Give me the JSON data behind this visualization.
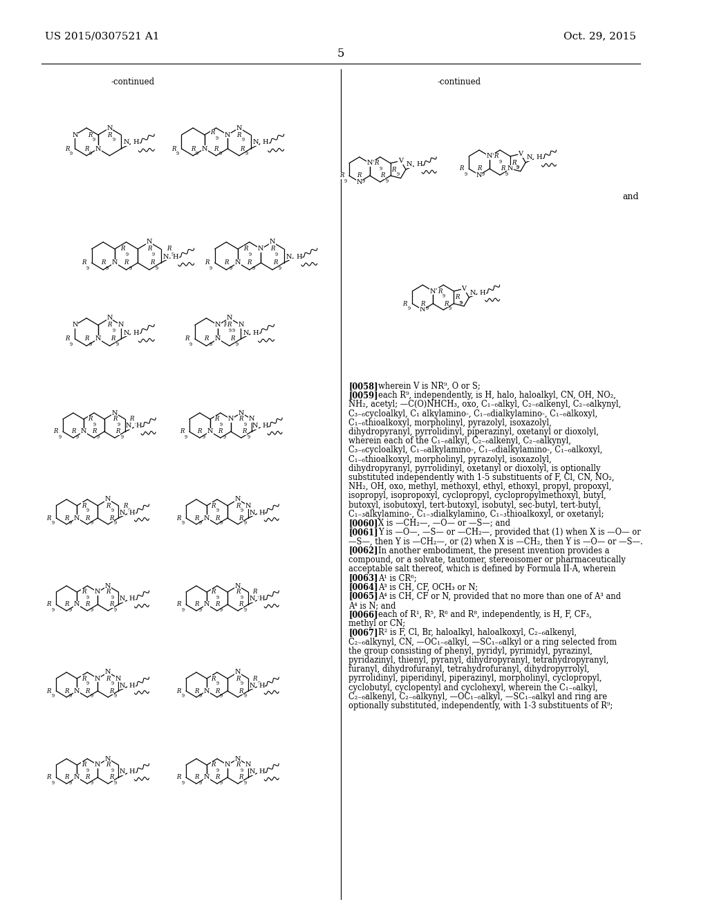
{
  "patent_number": "US 2015/0307521 A1",
  "date": "Oct. 29, 2015",
  "page": "5",
  "continued_left": "-continued",
  "continued_right": "-continued",
  "and_label": "and",
  "paragraphs": [
    {
      "tag": "[0058]",
      "indent": true,
      "text": "wherein V is NR⁹, O or S;"
    },
    {
      "tag": "[0059]",
      "indent": true,
      "text": "each R⁹, independently, is H, halo, haloalkyl, CN, OH, NO₂, NH₂, acetyl; —C(O)NHCH₃, oxo, C₁₋₆alkyl, C₂₋₆alkenyl, C₂₋₆alkynyl, C₃₋₆cycloalkyl, C₁ alkylamino-, C₁₋₆dialkylamino-, C₁₋₆alkoxyl, C₁₋₆thioalkoxyl, morpholinyl, pyrazolyl, isoxazolyl, dihydropyranyl, pyrrolidinyl, piperazinyl, oxetanyl or dioxolyl, wherein each of the C₁₋₆alkyl, C₂₋₆alkenyl, C₂₋₆alkynyl, C₃₋₆cycloalkyl, C₁₋₆alkylamino-, C₁₋₆dialkylamino-, C₁₋₆alkoxyl, C₁₋₆thioalkoxyl, morpholinyl, pyrazolyl, isoxazolyl, dihydropyranyl, pyrrolidinyl, oxetanyl or dioxolyl, is optionally substituted independently with 1-5 substituents of F, Cl, CN, NO₂, NH₂, OH, oxo, methyl, methoxyl, ethyl, ethoxyl, propyl, propoxyl, isopropyl, isopropoxyl, cyclopropyl, cyclopropylmethoxyl, butyl, butoxyl, isobutoxyl, tert-butoxyl, isobutyl, sec-butyl, tert-butyl, C₁₋₃alkylamino-, C₁₋₃dialkylamino, C₁₋₃thioalkoxyl, or oxetanyl;"
    },
    {
      "tag": "[0060]",
      "indent": true,
      "text": "X is —CH₂—, —O— or —S—; and"
    },
    {
      "tag": "[0061]",
      "indent": true,
      "text": "Y is —O—, —S— or —CH₂—, provided that (1) when X is —O— or —S—, then Y is —CH₂—, or (2) when X is —CH₂, then Y is —O— or —S—."
    },
    {
      "tag": "[0062]",
      "indent": true,
      "text": "In another embodiment, the present invention provides a compound, or a solvate, tautomer, stereoisomer or pharmaceutically acceptable salt thereof, which is defined by Formula II-A, wherein"
    },
    {
      "tag": "[0063]",
      "indent": true,
      "text": "A¹ is CR⁶;"
    },
    {
      "tag": "[0064]",
      "indent": true,
      "text": "A³ is CH, CF, OCH₃ or N;"
    },
    {
      "tag": "[0065]",
      "indent": true,
      "text": "A⁴ is CH, CF or N, provided that no more than one of A³ and A⁴ is N; and"
    },
    {
      "tag": "[0066]",
      "indent": true,
      "text": "each of R¹, R⁵, R⁶ and R⁸, independently, is H, F, CF₃, methyl or CN;"
    },
    {
      "tag": "[0067]",
      "indent": true,
      "text": "R² is F, Cl, Br, haloalkyl, haloalkoxyl, C₂₋₆alkenyl, C₂₋₆alkynyl, CN, —OC₁₋₆alkyl, —SC₁₋₆alkyl or a ring selected from the group consisting of phenyl, pyridyl, pyrimidyl, pyrazinyl, pyridazinyl, thienyl, pyranyl, dihydropyranyl, tetrahydropyranyl, furanyl, dihydrofuranyl, tetrahydrofuranyl, dihydropyrrolyl, pyrrolidinyl, piperidinyl, piperazinyl, morpholinyl, cyclopropyl, cyclobutyl, cyclopentyl and cyclohexyl, wherein the C₁₋₆alkyl, C₂₋₆alkenyl, C₂₋₆alkynyl, —OC₁₋₆alkyl, —SC₁₋₆alkyl and ring are optionally substituted, independently, with 1-3 substituents of R⁹;"
    }
  ]
}
